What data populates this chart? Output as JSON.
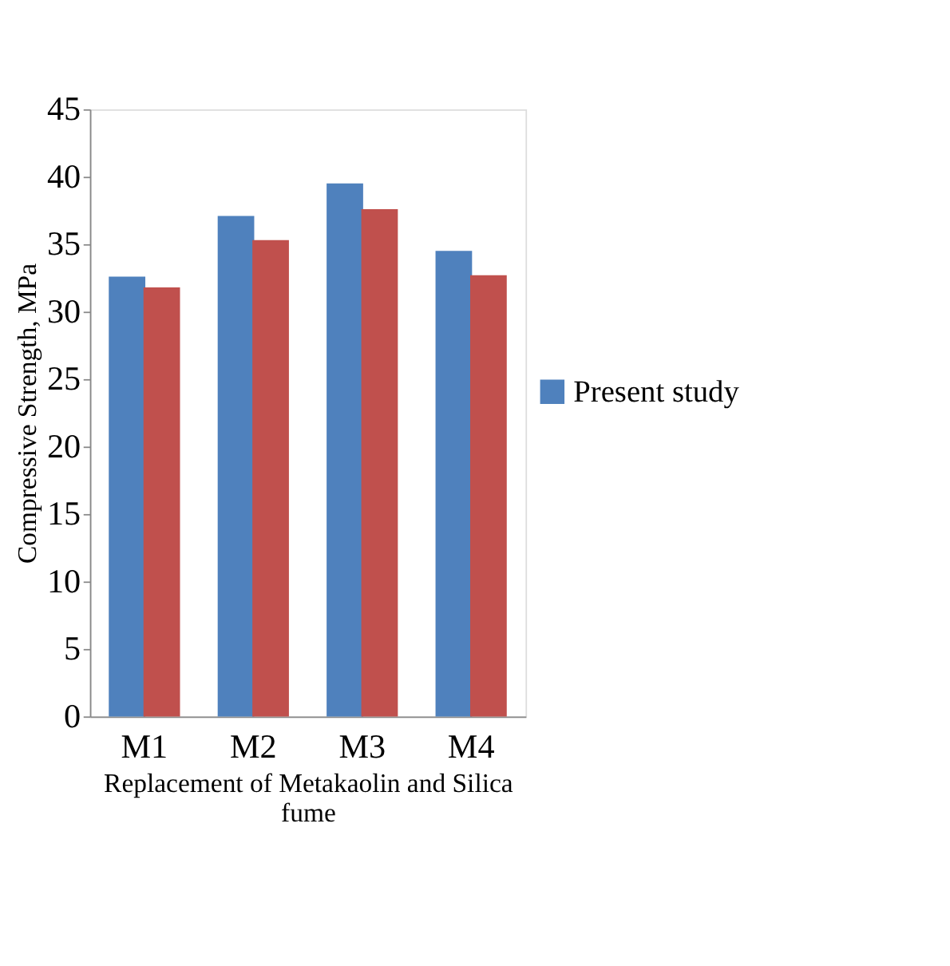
{
  "chart_data": {
    "type": "bar",
    "categories": [
      "M1",
      "M2",
      "M3",
      "M4"
    ],
    "series": [
      {
        "name": "Present study",
        "color": "#4f81bd",
        "values": [
          32.6,
          37.1,
          39.5,
          34.5
        ]
      },
      {
        "color": "#c0504d",
        "values": [
          31.8,
          35.3,
          37.6,
          32.7
        ]
      }
    ],
    "xlabel": "Replacement of Metakaolin and Silica fume",
    "ylabel": "Compressive Strength, MPa",
    "ylim": [
      0,
      45
    ],
    "yticks": [
      0,
      5,
      10,
      15,
      20,
      25,
      30,
      35,
      40,
      45
    ],
    "grid": false,
    "legend": "right"
  }
}
